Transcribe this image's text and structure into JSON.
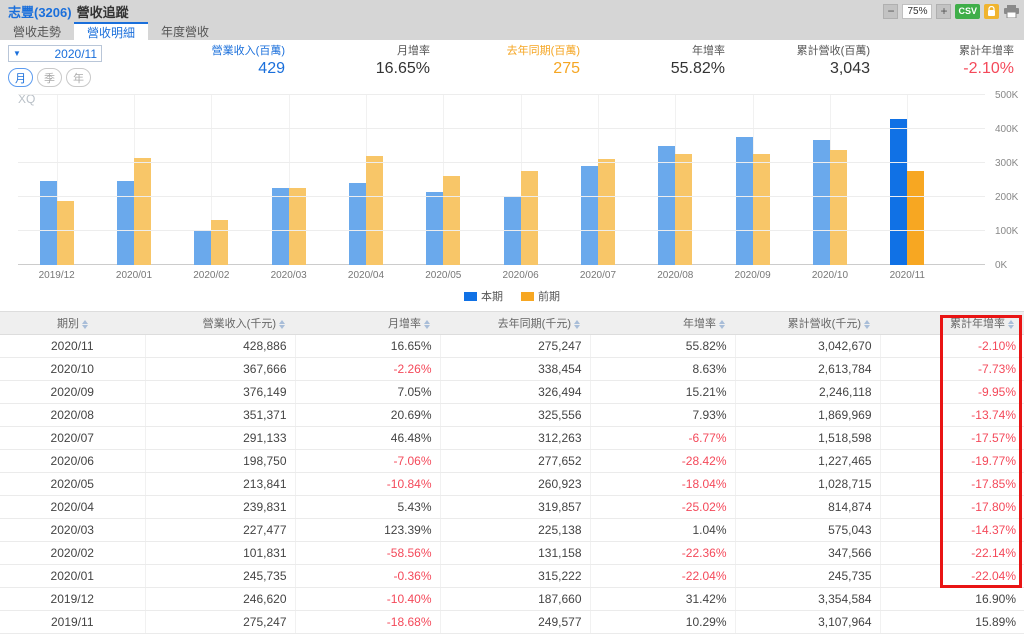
{
  "colors": {
    "accent": "#1a6fdb",
    "orange": "#f5a623",
    "red": "#f4495a",
    "bar_blue": "#6aa9ec",
    "bar_blue_hi": "#1071e5",
    "bar_orange": "#f8c668",
    "bar_orange_hi": "#f7a722",
    "hlbox": "#e91414"
  },
  "header": {
    "stock_name": "志豐(3206)",
    "page_title": "營收追蹤",
    "zoom_level": "75%",
    "csv_label": "CSV"
  },
  "tabs": [
    {
      "label": "營收走勢",
      "active": false
    },
    {
      "label": "營收明細",
      "active": true
    },
    {
      "label": "年度營收",
      "active": false
    }
  ],
  "controls": {
    "period": "2020/11",
    "freq_options": [
      "月",
      "季",
      "年"
    ],
    "freq_active_index": 0
  },
  "stats": [
    {
      "label": "營業收入(百萬)",
      "value": "429",
      "label_tone": "blue",
      "value_tone": "blue"
    },
    {
      "label": "月增率",
      "value": "16.65%",
      "label_tone": "dark",
      "value_tone": "dark"
    },
    {
      "label": "去年同期(百萬)",
      "value": "275",
      "label_tone": "orange",
      "value_tone": "orange"
    },
    {
      "label": "年增率",
      "value": "55.82%",
      "label_tone": "dark",
      "value_tone": "dark"
    },
    {
      "label": "累計營收(百萬)",
      "value": "3,043",
      "label_tone": "dark",
      "value_tone": "dark"
    },
    {
      "label": "累計年增率",
      "value": "-2.10%",
      "label_tone": "dark",
      "value_tone": "red"
    }
  ],
  "watermark": "XQ",
  "chart_data": {
    "type": "bar",
    "categories": [
      "2019/12",
      "2020/01",
      "2020/02",
      "2020/03",
      "2020/04",
      "2020/05",
      "2020/06",
      "2020/07",
      "2020/08",
      "2020/09",
      "2020/10",
      "2020/11"
    ],
    "series": [
      {
        "name": "本期",
        "values": [
          246620,
          245735,
          101831,
          227477,
          239831,
          213841,
          198750,
          291133,
          351371,
          376149,
          367666,
          428886
        ]
      },
      {
        "name": "前期",
        "values": [
          187660,
          315222,
          131158,
          225138,
          319857,
          260923,
          277652,
          312263,
          325556,
          326494,
          338454,
          275247
        ]
      }
    ],
    "highlight_index": 11,
    "ylim": [
      0,
      500000
    ],
    "yticks": [
      "0K",
      "100K",
      "200K",
      "300K",
      "400K",
      "500K"
    ],
    "grid": true,
    "legend_position": "bottom"
  },
  "table": {
    "columns": [
      "期別",
      "營業收入(千元)",
      "月增率",
      "去年同期(千元)",
      "年增率",
      "累計營收(千元)",
      "累計年增率"
    ],
    "rows": [
      [
        "2020/11",
        "428,886",
        "16.65%",
        "275,247",
        "55.82%",
        "3,042,670",
        "-2.10%"
      ],
      [
        "2020/10",
        "367,666",
        "-2.26%",
        "338,454",
        "8.63%",
        "2,613,784",
        "-7.73%"
      ],
      [
        "2020/09",
        "376,149",
        "7.05%",
        "326,494",
        "15.21%",
        "2,246,118",
        "-9.95%"
      ],
      [
        "2020/08",
        "351,371",
        "20.69%",
        "325,556",
        "7.93%",
        "1,869,969",
        "-13.74%"
      ],
      [
        "2020/07",
        "291,133",
        "46.48%",
        "312,263",
        "-6.77%",
        "1,518,598",
        "-17.57%"
      ],
      [
        "2020/06",
        "198,750",
        "-7.06%",
        "277,652",
        "-28.42%",
        "1,227,465",
        "-19.77%"
      ],
      [
        "2020/05",
        "213,841",
        "-10.84%",
        "260,923",
        "-18.04%",
        "1,028,715",
        "-17.85%"
      ],
      [
        "2020/04",
        "239,831",
        "5.43%",
        "319,857",
        "-25.02%",
        "814,874",
        "-17.80%"
      ],
      [
        "2020/03",
        "227,477",
        "123.39%",
        "225,138",
        "1.04%",
        "575,043",
        "-14.37%"
      ],
      [
        "2020/02",
        "101,831",
        "-58.56%",
        "131,158",
        "-22.36%",
        "347,566",
        "-22.14%"
      ],
      [
        "2020/01",
        "245,735",
        "-0.36%",
        "315,222",
        "-22.04%",
        "245,735",
        "-22.04%"
      ],
      [
        "2019/12",
        "246,620",
        "-10.40%",
        "187,660",
        "31.42%",
        "3,354,584",
        "16.90%"
      ],
      [
        "2019/11",
        "275,247",
        "-18.68%",
        "249,577",
        "10.29%",
        "3,107,964",
        "15.89%"
      ]
    ]
  }
}
